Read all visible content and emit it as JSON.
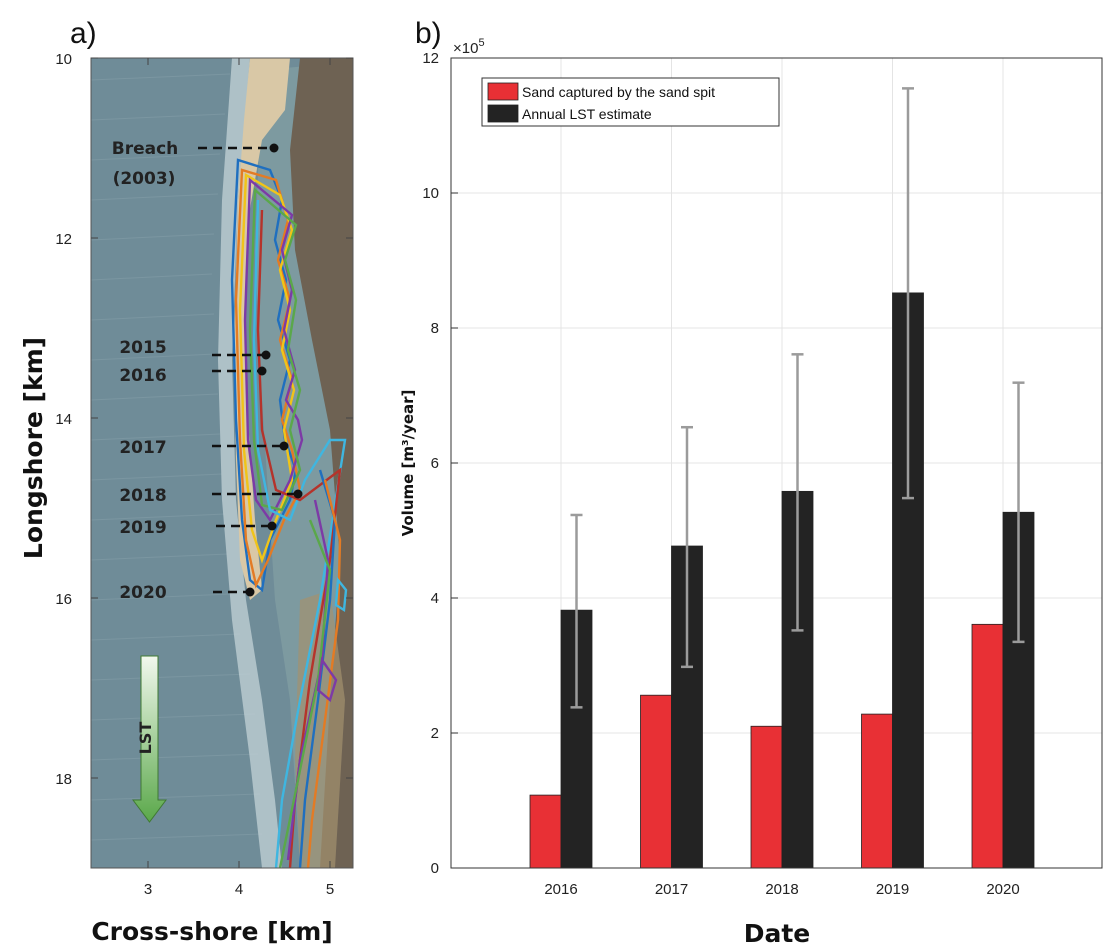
{
  "panels": {
    "a": "a)",
    "b": "b)"
  },
  "map": {
    "xlabel": "Cross-shore [km]",
    "ylabel": "Longshore [km]",
    "xticks": [
      "3",
      "4",
      "5"
    ],
    "yticks": [
      "10",
      "12",
      "14",
      "16",
      "18"
    ],
    "annotations": {
      "breach": "Breach",
      "breach_year": "(2003)",
      "y2015": "2015",
      "y2016": "2016",
      "y2017": "2017",
      "y2018": "2018",
      "y2019": "2019",
      "y2020": "2020"
    },
    "arrow_label": "LST",
    "colors": {
      "water": "#6f8c98",
      "sand": "#d9c8a6",
      "land": "#6e6253",
      "arrow_top": "#f2f8ee",
      "arrow_bottom": "#5aa84a"
    },
    "shoreline_colors": [
      "#1f6fbf",
      "#e37b24",
      "#f0c419",
      "#7d3aa6",
      "#5aa84a",
      "#3fb6e0",
      "#b5332b"
    ]
  },
  "chart_data": {
    "type": "bar",
    "categories": [
      "2016",
      "2017",
      "2018",
      "2019",
      "2020"
    ],
    "series": [
      {
        "name": "Sand captured by the sand spit",
        "color": "#e83035",
        "values": [
          1.08,
          2.56,
          2.1,
          2.28,
          3.61
        ]
      },
      {
        "name": "Annual LST estimate",
        "color": "#232323",
        "values": [
          3.82,
          4.77,
          5.58,
          8.52,
          5.27
        ],
        "error_low": [
          2.38,
          2.98,
          3.52,
          5.48,
          3.35
        ],
        "error_high": [
          5.23,
          6.53,
          7.61,
          11.55,
          7.19
        ]
      }
    ],
    "xlabel": "Date",
    "ylabel": "Volume [m³/year]",
    "y_multiplier": "×10",
    "y_exponent": "5",
    "ylim": [
      0,
      12
    ],
    "yticks": [
      0,
      2,
      4,
      6,
      8,
      10,
      12
    ],
    "grid": true,
    "legend_position": "top-left",
    "error_bar_color": "#9b9b9b"
  }
}
